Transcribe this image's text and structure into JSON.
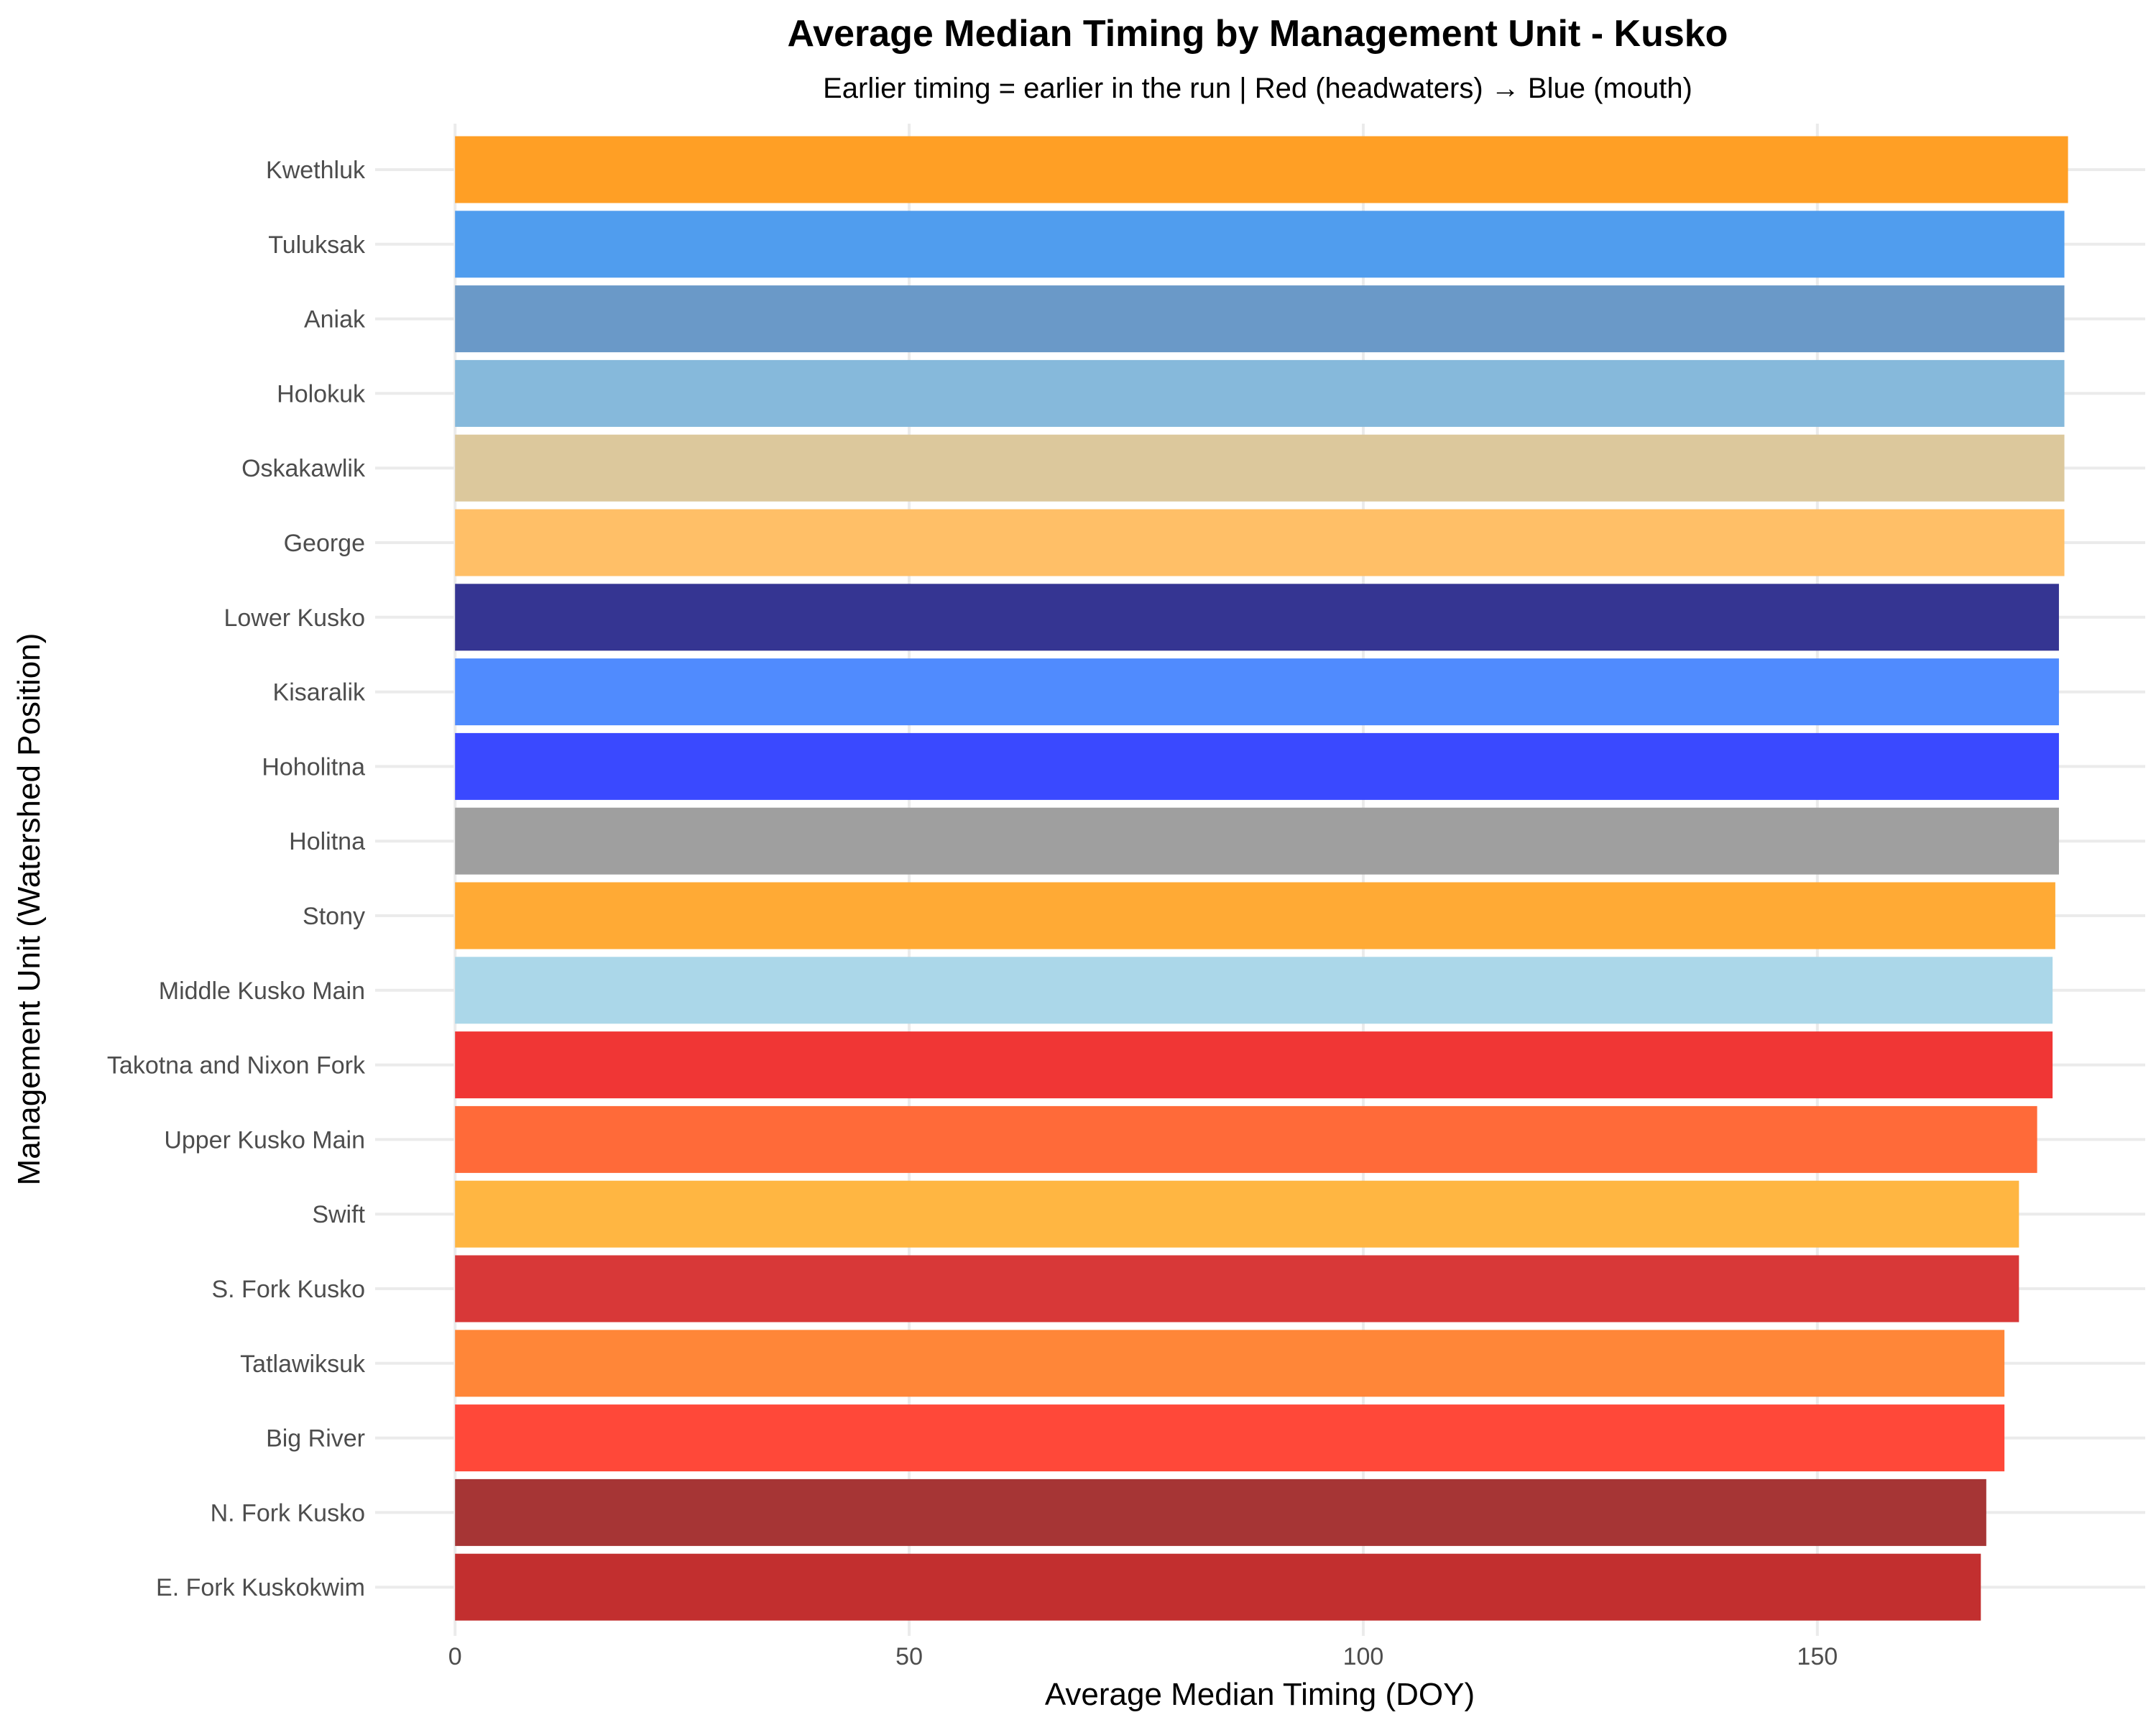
{
  "chart_data": {
    "type": "bar",
    "orientation": "horizontal",
    "title": "Average Median Timing by Management Unit - Kusko",
    "subtitle": "Earlier timing = earlier in the run | Red (headwaters) → Blue (mouth)",
    "xlabel": "Average Median Timing (DOY)",
    "ylabel": "Management Unit (Watershed Position)",
    "xlim": [
      -8.8,
      186.1
    ],
    "xticks": [
      0,
      50,
      100,
      150
    ],
    "grid": true,
    "legend": "none",
    "categories": [
      "Kwethluk",
      "Tuluksak",
      "Aniak",
      "Holokuk",
      "Oskakawlik",
      "George",
      "Lower Kusko",
      "Kisaralik",
      "Hoholitna",
      "Holitna",
      "Stony",
      "Middle Kusko Main",
      "Takotna and Nixon Fork",
      "Upper Kusko Main",
      "Swift",
      "S. Fork Kusko",
      "Tatlawiksuk",
      "Big River",
      "N. Fork Kusko",
      "E. Fork Kuskokwim"
    ],
    "values": [
      177.6,
      177.2,
      177.2,
      177.2,
      177.2,
      177.2,
      176.6,
      176.6,
      176.6,
      176.6,
      176.2,
      175.9,
      175.9,
      174.2,
      172.2,
      172.2,
      170.6,
      170.6,
      168.6,
      168.0
    ],
    "colors": [
      "#FF9C1E",
      "#4A9AED",
      "#6596C6",
      "#82B7DA",
      "#DBC699",
      "#FFBD62",
      "#2E2E8E",
      "#4A87FE",
      "#3443FF",
      "#9C9C9C",
      "#FFA72E",
      "#A8D6E8",
      "#F0302E",
      "#FF6533",
      "#FFB43C",
      "#D73232",
      "#FF8232",
      "#FF4233",
      "#A32E2E",
      "#C02828"
    ]
  }
}
